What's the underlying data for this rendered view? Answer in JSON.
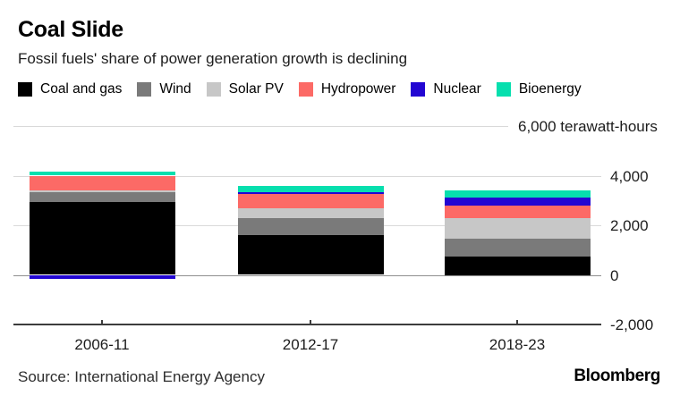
{
  "header": {
    "title": "Coal Slide",
    "subtitle": "Fossil fuels' share of power generation growth is declining"
  },
  "legend": [
    {
      "label": "Coal and gas",
      "color": "#000000"
    },
    {
      "label": "Wind",
      "color": "#7a7a7a"
    },
    {
      "label": "Solar PV",
      "color": "#c7c7c7"
    },
    {
      "label": "Hydropower",
      "color": "#fc6a66"
    },
    {
      "label": "Nuclear",
      "color": "#2206d2"
    },
    {
      "label": "Bioenergy",
      "color": "#06dfae"
    }
  ],
  "chart_data": {
    "type": "bar",
    "stacked": true,
    "title": "Coal Slide",
    "subtitle": "Fossil fuels' share of power generation growth is declining",
    "unit": "terawatt-hours",
    "categories": [
      "2006-11",
      "2012-17",
      "2018-23"
    ],
    "series": [
      {
        "name": "Coal and gas",
        "color": "#000000",
        "values": [
          2950,
          1600,
          750
        ]
      },
      {
        "name": "Wind",
        "color": "#7a7a7a",
        "values": [
          400,
          700,
          700
        ]
      },
      {
        "name": "Solar PV",
        "color": "#c7c7c7",
        "values": [
          50,
          400,
          850
        ]
      },
      {
        "name": "Hydropower",
        "color": "#fc6a66",
        "values": [
          600,
          550,
          500
        ]
      },
      {
        "name": "Nuclear",
        "color": "#2206d2",
        "values": [
          -150,
          100,
          300
        ]
      },
      {
        "name": "Bioenergy",
        "color": "#06dfae",
        "values": [
          150,
          250,
          300
        ]
      }
    ],
    "y_axis": {
      "side": "right",
      "range": [
        -2000,
        6000
      ],
      "ticks": [
        {
          "value": 6000,
          "label": "6,000 terawatt-hours"
        },
        {
          "value": 4000,
          "label": "4,000"
        },
        {
          "value": 2000,
          "label": "2,000"
        },
        {
          "value": 0,
          "label": "0"
        },
        {
          "value": -2000,
          "label": "-2,000"
        }
      ]
    },
    "grid": true,
    "legend_position": "top"
  },
  "footer": {
    "source": "Source: International Energy Agency",
    "brand": "Bloomberg"
  }
}
